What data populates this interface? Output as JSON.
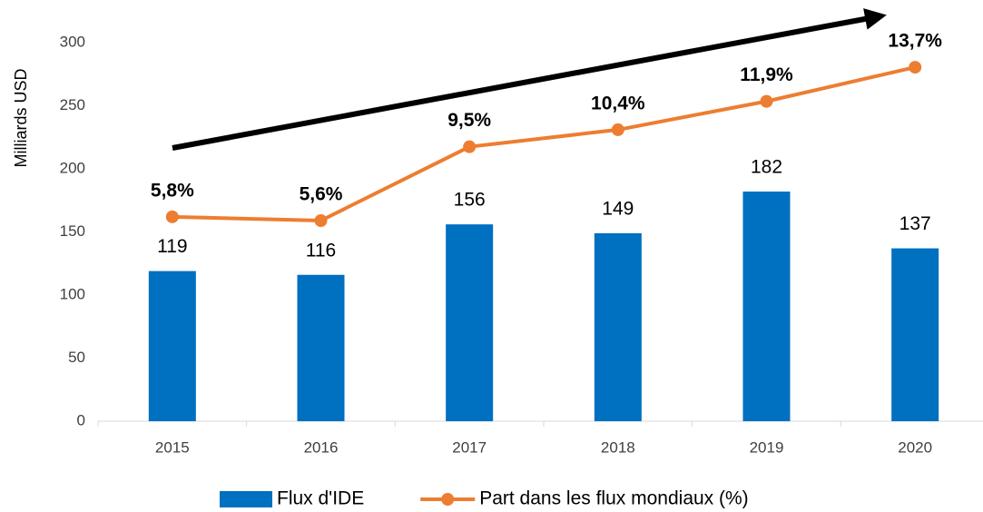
{
  "chart_data": {
    "type": "bar_line",
    "y_axis_label": "Milliards USD",
    "categories": [
      "2015",
      "2016",
      "2017",
      "2018",
      "2019",
      "2020"
    ],
    "series": [
      {
        "name": "Flux d'IDE",
        "type": "bar",
        "color": "#0070c0",
        "values": [
          119,
          116,
          156,
          149,
          182,
          137
        ]
      },
      {
        "name": "Part dans les flux mondiaux (%)",
        "type": "line",
        "axis": "y2",
        "color": "#ed7d31",
        "values": [
          5.8,
          5.6,
          9.5,
          10.4,
          11.9,
          13.7
        ],
        "value_labels": [
          "5,8%",
          "5,6%",
          "9,5%",
          "10,4%",
          "11,9%",
          "13,7%"
        ]
      }
    ],
    "ylim": [
      0,
      300
    ],
    "yticks": [
      0,
      50,
      100,
      150,
      200,
      250,
      300
    ],
    "y2lim": [
      -5,
      15
    ],
    "grid": false,
    "legend": "bottom"
  }
}
